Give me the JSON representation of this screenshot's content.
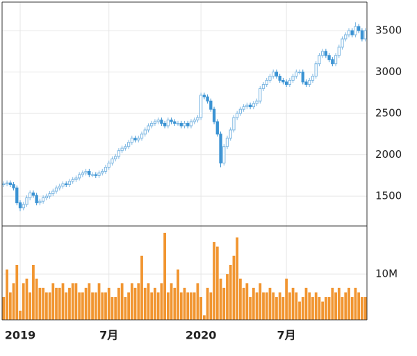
{
  "chart_data": [
    {
      "type": "candlestick",
      "open": [
        1640,
        1650,
        1660,
        1640,
        1600,
        1420,
        1360,
        1400,
        1480,
        1540,
        1510,
        1420,
        1440,
        1480,
        1500,
        1530,
        1560,
        1600,
        1620,
        1650,
        1640,
        1680,
        1700,
        1720,
        1760,
        1780,
        1800,
        1760,
        1760,
        1750,
        1780,
        1800,
        1850,
        1900,
        1950,
        1980,
        2050,
        2080,
        2100,
        2150,
        2200,
        2180,
        2200,
        2250,
        2300,
        2350,
        2380,
        2400,
        2420,
        2380,
        2350,
        2420,
        2400,
        2380,
        2380,
        2350,
        2380,
        2350,
        2400,
        2420,
        2450,
        2720,
        2700,
        2650,
        2550,
        2400,
        2250,
        1900,
        2100,
        2200,
        2300,
        2450,
        2500,
        2550,
        2580,
        2600,
        2580,
        2620,
        2650,
        2800,
        2850,
        2900,
        2950,
        3000,
        2950,
        2900,
        2880,
        2850,
        2900,
        2950,
        3000,
        3000,
        2880,
        2850,
        2900,
        2950,
        3100,
        3200,
        3250,
        3200,
        3150,
        3100,
        3200,
        3300,
        3400,
        3450,
        3500,
        3450,
        3550,
        3500,
        3400
      ],
      "high": [
        1680,
        1690,
        1690,
        1670,
        1630,
        1450,
        1430,
        1510,
        1570,
        1570,
        1540,
        1470,
        1510,
        1530,
        1560,
        1590,
        1630,
        1650,
        1680,
        1680,
        1710,
        1730,
        1750,
        1790,
        1810,
        1830,
        1830,
        1790,
        1790,
        1810,
        1830,
        1880,
        1930,
        1980,
        2010,
        2080,
        2110,
        2130,
        2180,
        2230,
        2230,
        2230,
        2280,
        2330,
        2380,
        2410,
        2430,
        2450,
        2450,
        2410,
        2450,
        2450,
        2430,
        2410,
        2410,
        2410,
        2410,
        2430,
        2450,
        2480,
        2750,
        2750,
        2730,
        2680,
        2580,
        2430,
        2280,
        2130,
        2230,
        2330,
        2480,
        2530,
        2580,
        2610,
        2630,
        2630,
        2650,
        2680,
        2830,
        2880,
        2930,
        2980,
        3030,
        3030,
        2980,
        2930,
        2910,
        2930,
        2980,
        3030,
        3030,
        3030,
        2910,
        2930,
        2980,
        3130,
        3230,
        3280,
        3280,
        3230,
        3180,
        3230,
        3330,
        3430,
        3480,
        3530,
        3530,
        3600,
        3580,
        3530,
        3530
      ],
      "low": [
        1610,
        1620,
        1610,
        1570,
        1390,
        1320,
        1330,
        1370,
        1450,
        1480,
        1390,
        1390,
        1410,
        1450,
        1470,
        1500,
        1530,
        1570,
        1590,
        1610,
        1610,
        1650,
        1670,
        1690,
        1730,
        1750,
        1730,
        1730,
        1720,
        1720,
        1750,
        1770,
        1820,
        1870,
        1920,
        1950,
        2020,
        2050,
        2070,
        2120,
        2150,
        2150,
        2170,
        2220,
        2270,
        2320,
        2350,
        2370,
        2350,
        2320,
        2320,
        2370,
        2350,
        2350,
        2320,
        2320,
        2320,
        2320,
        2370,
        2390,
        2420,
        2670,
        2620,
        2520,
        2370,
        2220,
        1850,
        1870,
        2070,
        2170,
        2270,
        2420,
        2470,
        2520,
        2550,
        2550,
        2550,
        2590,
        2620,
        2770,
        2820,
        2870,
        2920,
        2920,
        2870,
        2850,
        2820,
        2820,
        2870,
        2920,
        2970,
        2850,
        2820,
        2820,
        2870,
        2920,
        3070,
        3170,
        3170,
        3120,
        3070,
        3070,
        3170,
        3270,
        3370,
        3420,
        3420,
        3420,
        3470,
        3370,
        3370
      ],
      "close": [
        1650,
        1660,
        1640,
        1600,
        1420,
        1360,
        1400,
        1480,
        1540,
        1510,
        1420,
        1440,
        1480,
        1500,
        1530,
        1560,
        1600,
        1620,
        1650,
        1640,
        1680,
        1700,
        1720,
        1760,
        1780,
        1800,
        1760,
        1760,
        1750,
        1780,
        1800,
        1850,
        1900,
        1950,
        1980,
        2050,
        2080,
        2100,
        2150,
        2200,
        2180,
        2200,
        2250,
        2300,
        2350,
        2380,
        2400,
        2420,
        2380,
        2350,
        2420,
        2400,
        2380,
        2380,
        2350,
        2380,
        2350,
        2400,
        2420,
        2450,
        2720,
        2700,
        2650,
        2550,
        2400,
        2250,
        1900,
        2100,
        2200,
        2300,
        2450,
        2500,
        2550,
        2580,
        2600,
        2580,
        2620,
        2650,
        2800,
        2850,
        2900,
        2950,
        3000,
        2950,
        2900,
        2880,
        2850,
        2900,
        2950,
        3000,
        3000,
        2880,
        2850,
        2900,
        2950,
        3100,
        3200,
        3250,
        3200,
        3150,
        3100,
        3200,
        3300,
        3400,
        3450,
        3500,
        3450,
        3550,
        3500,
        3400,
        3500
      ],
      "up_color": "#7db7e2",
      "down_color": "#3b93d3",
      "ylim": [
        1140,
        3845
      ],
      "yticks": [
        1500,
        2000,
        2500,
        3000,
        3500
      ],
      "grid": true
    },
    {
      "type": "bar",
      "values": [
        5,
        11,
        6,
        8,
        12,
        2,
        8,
        9,
        6,
        12,
        9,
        7,
        7,
        6,
        6,
        8,
        7,
        7,
        8,
        6,
        7,
        8,
        8,
        6,
        6,
        7,
        8,
        6,
        6,
        8,
        6,
        6,
        7,
        5,
        5,
        7,
        8,
        5,
        6,
        8,
        7,
        8,
        14,
        7,
        8,
        6,
        7,
        6,
        8,
        19,
        6,
        8,
        7,
        11,
        6,
        7,
        6,
        6,
        6,
        8,
        5,
        1,
        7,
        6,
        17,
        16,
        9,
        7,
        10,
        12,
        14,
        18,
        9,
        7,
        8,
        5,
        7,
        6,
        8,
        6,
        6,
        7,
        6,
        5,
        6,
        5,
        9,
        6,
        7,
        6,
        4,
        5,
        7,
        6,
        5,
        6,
        5,
        4,
        5,
        5,
        7,
        6,
        7,
        5,
        6,
        7,
        5,
        7,
        6,
        5,
        5
      ],
      "color": "#f19530",
      "ylim": [
        0,
        20.5
      ],
      "yticks": [
        {
          "value": 10,
          "label": "10M"
        }
      ],
      "grid": true,
      "xticks": [
        {
          "value": 5,
          "label": "2019"
        },
        {
          "value": 32,
          "label": "7月"
        },
        {
          "value": 60,
          "label": "2020"
        },
        {
          "value": 86,
          "label": "7月"
        }
      ]
    }
  ]
}
